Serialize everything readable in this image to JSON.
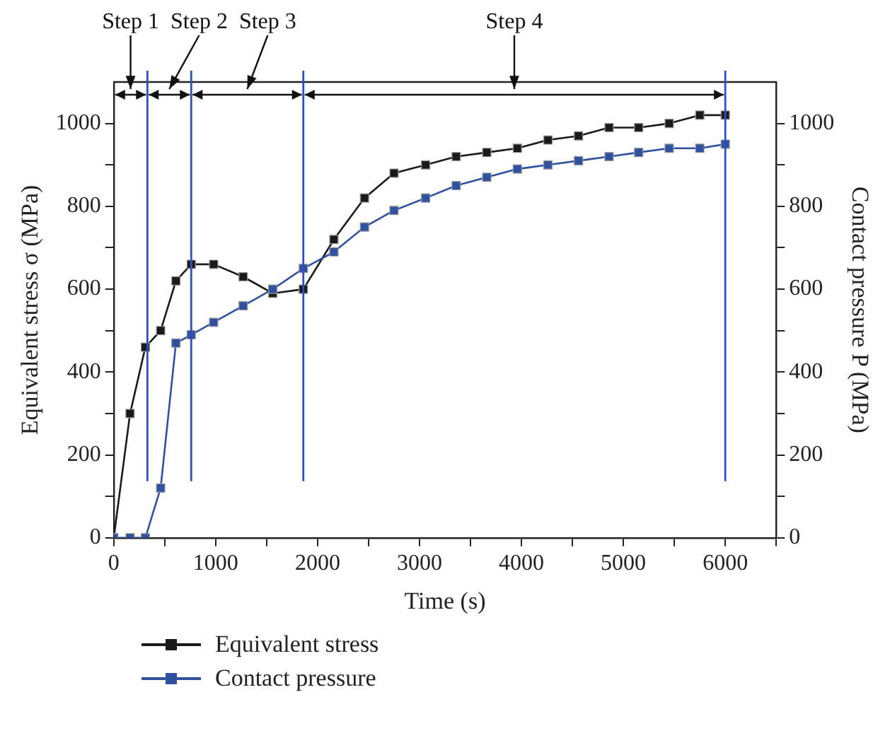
{
  "chart_data": {
    "type": "line",
    "xlabel": "Time (s)",
    "ylabel": "Equivalent stress σ (MPa)",
    "y2label": "Contact pressure P (MPa)",
    "x": [
      0,
      160,
      310,
      460,
      610,
      760,
      980,
      1270,
      1560,
      1860,
      2160,
      2460,
      2750,
      3060,
      3360,
      3660,
      3960,
      4260,
      4560,
      4860,
      5150,
      5450,
      5750,
      6000
    ],
    "series": [
      {
        "name": "Equivalent stress",
        "color": "#1a1a1a",
        "values": [
          0,
          300,
          460,
          500,
          620,
          660,
          660,
          630,
          590,
          600,
          720,
          820,
          880,
          900,
          920,
          930,
          940,
          960,
          970,
          990,
          990,
          1000,
          1020,
          1020
        ]
      },
      {
        "name": "Contact pressure",
        "color": "#3050a0",
        "axis": "y2",
        "values": [
          0,
          0,
          0,
          120,
          470,
          490,
          520,
          560,
          600,
          650,
          690,
          750,
          790,
          820,
          850,
          870,
          890,
          900,
          910,
          920,
          930,
          940,
          940,
          950
        ]
      }
    ],
    "xlim": [
      0,
      6500
    ],
    "xticks": [
      0,
      {
        "value": 500,
        "label": null
      },
      1000,
      {
        "value": 1500,
        "label": null
      },
      2000,
      {
        "value": 2500,
        "label": null
      },
      3000,
      {
        "value": 3500,
        "label": null
      },
      4000,
      {
        "value": 4500,
        "label": null
      },
      5000,
      {
        "value": 5500,
        "label": null
      },
      6000,
      {
        "value": 6500,
        "label": null
      }
    ],
    "ylim": [
      0,
      1100
    ],
    "yticks": [
      0,
      {
        "value": 100,
        "label": null
      },
      200,
      {
        "value": 300,
        "label": null
      },
      400,
      {
        "value": 500,
        "label": null
      },
      600,
      {
        "value": 700,
        "label": null
      },
      800,
      {
        "value": 900,
        "label": null
      },
      1000
    ],
    "y2lim": [
      0,
      1100
    ],
    "y2ticks": [
      0,
      {
        "value": 100,
        "label": null
      },
      200,
      {
        "value": 300,
        "label": null
      },
      400,
      {
        "value": 500,
        "label": null
      },
      600,
      {
        "value": 700,
        "label": null
      },
      800,
      {
        "value": 900,
        "label": null
      },
      1000
    ],
    "ref_lines": [
      {
        "axis": "x",
        "value": 330,
        "color": "#3050c0"
      },
      {
        "axis": "x",
        "value": 760,
        "color": "#3050c0"
      },
      {
        "axis": "x",
        "value": 1860,
        "color": "#3050c0"
      },
      {
        "axis": "x",
        "value": 6000,
        "color": "#3050c0"
      }
    ],
    "annotations": [
      "Step 1",
      "Step 2",
      "Step 3",
      "Step 4"
    ],
    "grid": false,
    "legend": "bottom left",
    "marker": "square",
    "line_style": "solid"
  }
}
